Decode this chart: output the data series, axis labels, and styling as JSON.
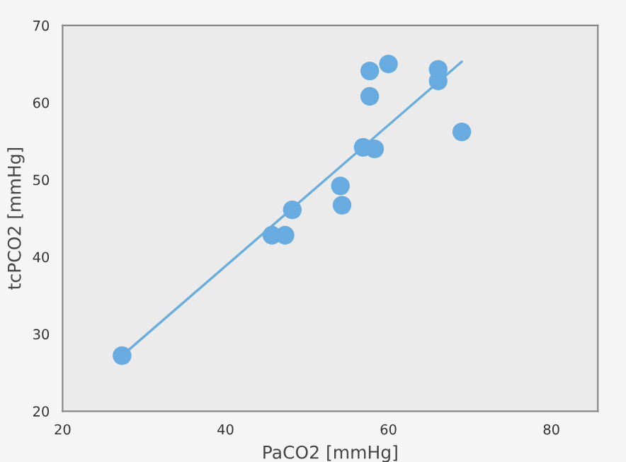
{
  "chart_data": {
    "type": "scatter",
    "xlabel": "PaCO2 [mmHg]",
    "ylabel": "tcPCO2 [mmHg]",
    "xlim": [
      20,
      85.7
    ],
    "xticks": [
      20,
      40,
      60,
      80
    ],
    "ylim": [
      20,
      70
    ],
    "yticks": [
      20,
      30,
      40,
      50,
      60,
      70
    ],
    "grid": false,
    "series": [
      {
        "marker": "circle",
        "color": "#67abe0",
        "x": [
          27.3,
          45.7,
          47.3,
          48.2,
          54.1,
          54.3,
          56.9,
          58.3,
          57.7,
          57.7,
          60.0,
          66.1,
          66.1,
          69.0
        ],
        "values": [
          27.2,
          42.8,
          42.8,
          46.1,
          49.2,
          46.7,
          54.2,
          54.0,
          60.8,
          64.1,
          65.0,
          64.3,
          62.8,
          56.2
        ]
      },
      {
        "type": "line",
        "color": "#6aaee0",
        "x": [
          27.3,
          69.0
        ],
        "values": [
          27.2,
          65.3
        ]
      }
    ]
  }
}
